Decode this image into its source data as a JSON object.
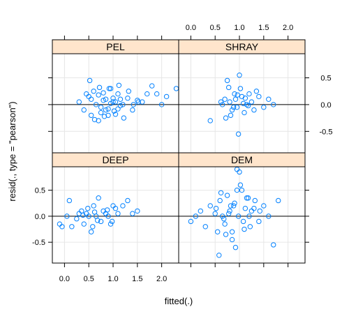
{
  "chart_data": {
    "type": "scatter",
    "layout": "2x2 trellis",
    "xlabel": "fitted(.)",
    "ylabel": "resid(., type = \"pearson\")",
    "xlim": [
      -0.25,
      2.35
    ],
    "ylim": [
      -0.9,
      0.95
    ],
    "x_ticks": [
      "0.0",
      "0.5",
      "1.0",
      "1.5",
      "2.0"
    ],
    "y_ticks": [
      "-0.5",
      "0.0",
      "0.5"
    ],
    "reference_line_y": 0.0,
    "grid": true,
    "marker_color": "#0080ff",
    "strip_color": "#ffe5cc",
    "panels": [
      {
        "name": "PEL",
        "position": "top-left",
        "x": [
          0.3,
          0.4,
          0.45,
          0.5,
          0.55,
          0.6,
          0.65,
          0.7,
          0.75,
          0.8,
          0.85,
          0.9,
          0.95,
          1.0,
          1.05,
          1.1,
          1.15,
          1.2,
          1.3,
          1.4,
          1.5,
          1.6,
          1.7,
          1.8,
          1.9,
          2.0,
          2.1,
          2.3,
          0.52,
          0.72,
          0.92,
          1.12,
          1.32,
          1.52,
          0.62,
          0.82,
          1.02,
          1.22,
          1.42,
          0.55,
          0.75,
          0.95,
          1.15,
          0.7,
          0.9,
          1.1,
          0.8,
          1.0,
          0.85,
          1.05
        ],
        "y": [
          0.05,
          -0.1,
          0.2,
          0.15,
          -0.2,
          0.25,
          0.0,
          0.18,
          -0.15,
          0.22,
          0.1,
          -0.08,
          0.3,
          0.05,
          -0.18,
          0.2,
          0.1,
          0.0,
          0.12,
          -0.1,
          0.08,
          0.05,
          0.2,
          0.35,
          0.2,
          0.0,
          0.15,
          0.3,
          0.45,
          0.32,
          0.3,
          0.36,
          0.25,
          0.05,
          -0.28,
          -0.22,
          -0.12,
          -0.25,
          0.0,
          0.1,
          -0.05,
          0.02,
          -0.02,
          -0.3,
          -0.2,
          -0.08,
          0.08,
          0.12,
          -0.1,
          0.05
        ]
      },
      {
        "name": "SHRAY",
        "position": "top-right",
        "x": [
          0.4,
          0.65,
          0.7,
          0.75,
          0.8,
          0.85,
          0.9,
          0.95,
          1.0,
          1.05,
          1.1,
          1.15,
          1.2,
          1.25,
          1.3,
          1.35,
          1.4,
          1.5,
          1.6,
          1.7,
          0.72,
          0.82,
          0.92,
          1.02,
          1.12,
          0.62,
          0.88,
          0.98,
          1.08,
          1.18,
          0.78,
          0.96
        ],
        "y": [
          -0.3,
          0.0,
          0.1,
          0.45,
          0.05,
          -0.1,
          0.2,
          -0.05,
          0.55,
          0.15,
          -0.15,
          0.0,
          0.2,
          0.05,
          -0.1,
          0.25,
          0.15,
          -0.05,
          0.1,
          0.0,
          -0.25,
          -0.2,
          0.1,
          0.3,
          0.12,
          0.05,
          -0.05,
          -0.55,
          0.02,
          -0.02,
          0.32,
          0.18
        ]
      },
      {
        "name": "DEEP",
        "position": "bottom-left",
        "x": [
          -0.1,
          -0.05,
          0.05,
          0.1,
          0.15,
          0.25,
          0.3,
          0.35,
          0.4,
          0.45,
          0.5,
          0.55,
          0.6,
          0.65,
          0.7,
          0.75,
          0.8,
          0.85,
          0.9,
          0.95,
          1.0,
          1.05,
          1.1,
          1.2,
          1.3,
          1.4,
          1.5,
          0.48,
          0.58,
          0.68,
          0.88,
          0.98,
          0.38,
          0.62
        ],
        "y": [
          -0.15,
          -0.2,
          0.0,
          0.3,
          -0.2,
          -0.05,
          0.05,
          0.1,
          -0.15,
          0.05,
          0.0,
          -0.3,
          0.2,
          0.0,
          0.35,
          -0.1,
          0.1,
          0.05,
          0.0,
          -0.15,
          0.2,
          0.15,
          0.05,
          0.2,
          0.3,
          0.05,
          0.1,
          0.15,
          -0.2,
          -0.08,
          0.12,
          -0.1,
          0.02,
          0.08
        ]
      },
      {
        "name": "DEM",
        "position": "bottom-right",
        "x": [
          0.0,
          0.1,
          0.2,
          0.3,
          0.4,
          0.5,
          0.55,
          0.6,
          0.65,
          0.7,
          0.75,
          0.8,
          0.85,
          0.9,
          0.95,
          1.0,
          1.05,
          1.1,
          1.15,
          1.2,
          1.3,
          1.4,
          1.5,
          1.6,
          1.7,
          1.8,
          0.62,
          0.72,
          0.82,
          0.92,
          1.02,
          1.12,
          1.22,
          1.32,
          1.42,
          0.52,
          0.68,
          0.78,
          0.88,
          0.98,
          1.08,
          1.18,
          0.58,
          0.85,
          0.95,
          1.25
        ],
        "y": [
          -0.1,
          0.0,
          0.1,
          -0.2,
          0.2,
          0.05,
          -0.3,
          0.3,
          0.0,
          -0.15,
          0.4,
          0.1,
          -0.45,
          0.25,
          0.9,
          0.85,
          0.5,
          -0.25,
          0.35,
          0.0,
          0.15,
          -0.1,
          0.2,
          0.0,
          -0.55,
          0.3,
          0.45,
          -0.35,
          0.2,
          -0.6,
          0.6,
          0.15,
          -0.2,
          0.3,
          0.1,
          0.15,
          -0.05,
          0.05,
          0.2,
          0.0,
          -0.1,
          0.35,
          -0.75,
          -0.3,
          0.5,
          0.1
        ]
      }
    ]
  }
}
